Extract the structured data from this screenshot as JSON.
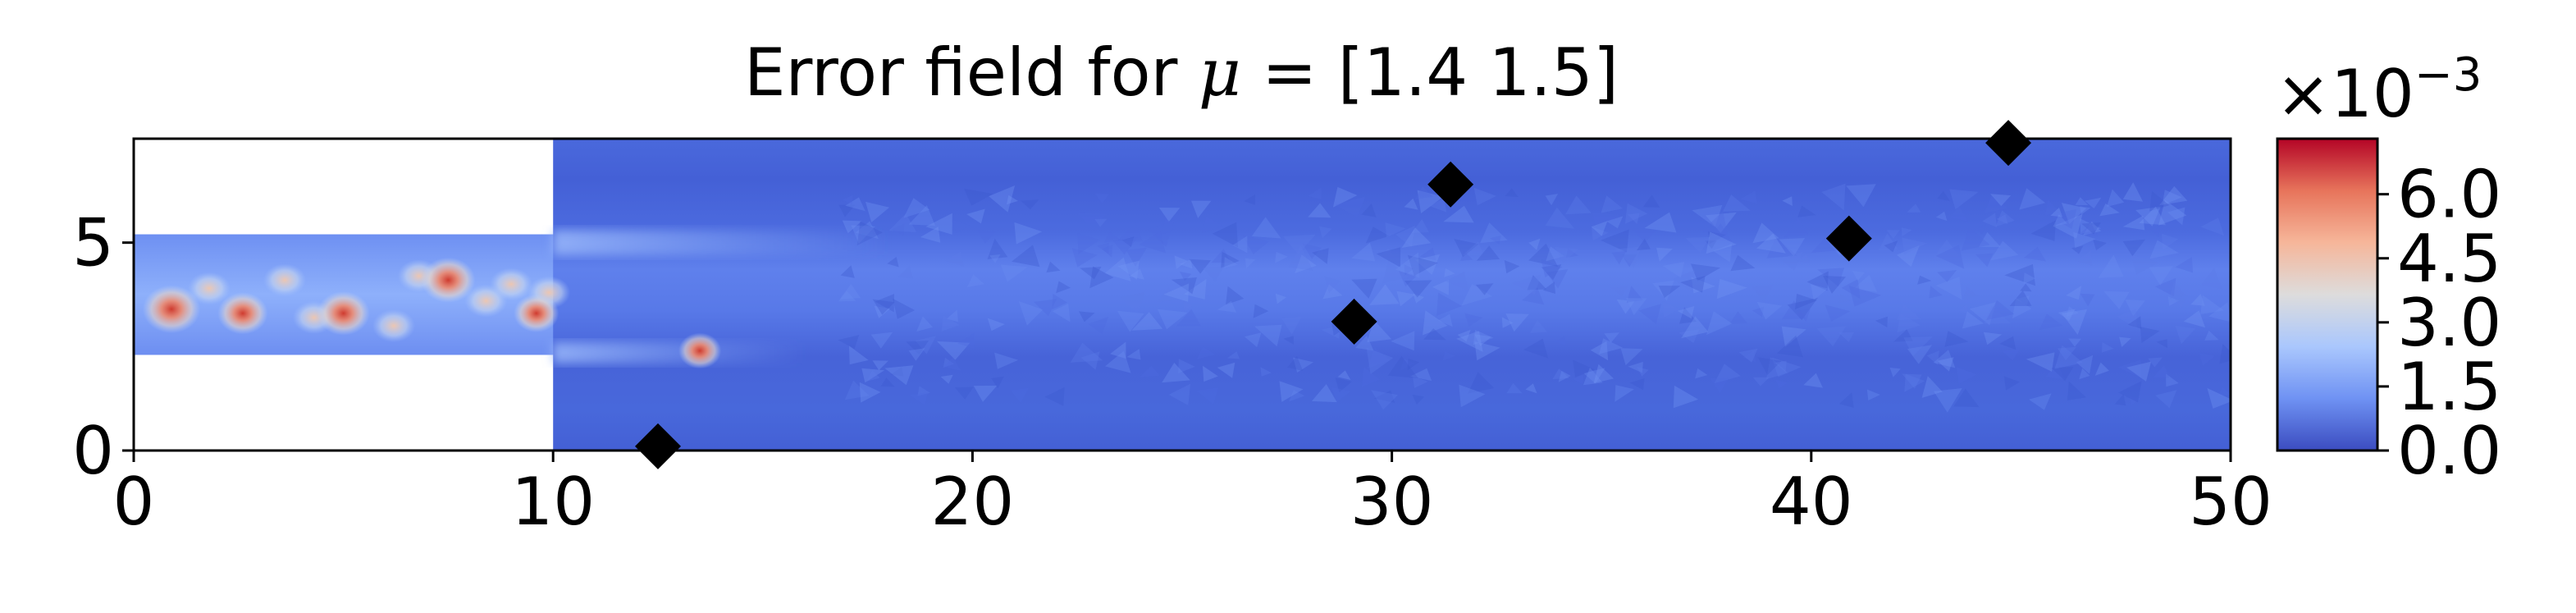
{
  "chart_data": {
    "type": "heatmap",
    "title": "Error field for μ = [1.4 1.5]",
    "title_parts": {
      "prefix": "Error field for ",
      "symbol": "μ",
      "suffix": " = [1.4 1.5]"
    },
    "xlabel": "",
    "ylabel": "",
    "xlim": [
      0,
      50
    ],
    "ylim": [
      0,
      7.5
    ],
    "x_ticks": [
      0,
      10,
      20,
      30,
      40,
      50
    ],
    "x_tick_labels": [
      "0",
      "10",
      "20",
      "30",
      "40",
      "50"
    ],
    "y_ticks": [
      0,
      5
    ],
    "y_tick_labels": [
      "0",
      "5"
    ],
    "grid": false,
    "domain": {
      "inlet_channel": {
        "x": [
          0,
          10
        ],
        "y": [
          2.3,
          5.2
        ]
      },
      "main_channel": {
        "x": [
          10,
          50
        ],
        "y": [
          0,
          7.5
        ]
      }
    },
    "colormap": "coolwarm",
    "colorbar": {
      "min": 0.0,
      "max": 0.0073,
      "multiplier_text": "×10",
      "exponent_text": "−3",
      "ticks": [
        0.0,
        1.5,
        3.0,
        4.5,
        6.0
      ],
      "tick_labels": [
        "0.0",
        "1.5",
        "3.0",
        "4.5",
        "6.0"
      ],
      "colors": [
        "#3b4cc0",
        "#6f92f3",
        "#aac7fd",
        "#dddcdc",
        "#f6b69a",
        "#e7745b",
        "#b40426"
      ]
    },
    "error_hotspots": [
      {
        "x": 0.9,
        "y": 3.4,
        "value": 7.0
      },
      {
        "x": 2.6,
        "y": 3.3,
        "value": 5.5
      },
      {
        "x": 5.0,
        "y": 3.3,
        "value": 6.0
      },
      {
        "x": 7.5,
        "y": 4.1,
        "value": 6.3
      },
      {
        "x": 9.6,
        "y": 3.3,
        "value": 4.5
      },
      {
        "x": 13.5,
        "y": 2.4,
        "value": 4.0
      }
    ],
    "markers": {
      "shape": "diamond",
      "color": "#000000",
      "points": [
        {
          "x": 12.5,
          "y": 0.1
        },
        {
          "x": 29.1,
          "y": 3.1
        },
        {
          "x": 31.4,
          "y": 6.4
        },
        {
          "x": 40.9,
          "y": 5.1
        },
        {
          "x": 44.7,
          "y": 7.4
        }
      ]
    }
  }
}
